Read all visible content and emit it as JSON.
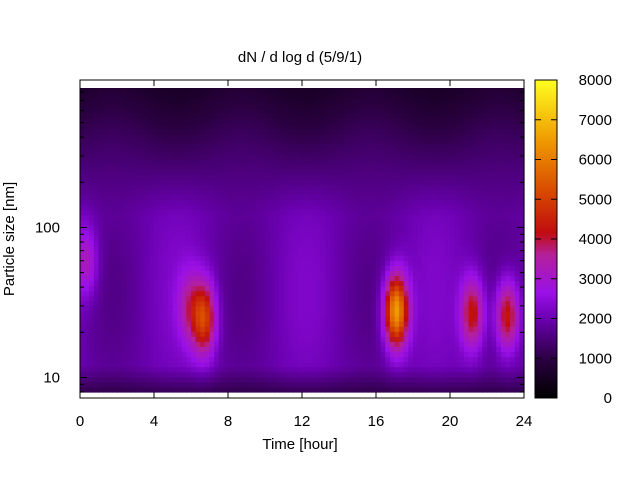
{
  "chart_data": {
    "type": "heatmap",
    "title": "dN / d log d (5/9/1)",
    "xlabel": "Time [hour]",
    "ylabel": "Particle size [nm]",
    "xlim": [
      0,
      24
    ],
    "ylim": [
      8,
      850
    ],
    "yscale": "log",
    "x_ticks": [
      0,
      4,
      8,
      12,
      16,
      20,
      24
    ],
    "y_ticks": [
      10,
      100
    ],
    "colorbar": {
      "ticks": [
        0,
        1000,
        2000,
        3000,
        4000,
        5000,
        6000,
        7000,
        8000
      ],
      "range": [
        0,
        8000
      ],
      "colormap": "gnuplot (black-purple-red-orange-yellow)"
    },
    "background_level": {
      "small_sizes_nm": [
        8,
        12,
        1300
      ],
      "mid_sizes_nm": [
        12,
        120,
        2300
      ],
      "large_sizes_nm": [
        120,
        850,
        800
      ]
    },
    "peaks": [
      {
        "time_h": 6.7,
        "size_nm": 25,
        "value": 5000
      },
      {
        "time_h": 5.9,
        "size_nm": 30,
        "value": 3500
      },
      {
        "time_h": 17.1,
        "size_nm": 28,
        "value": 6500
      },
      {
        "time_h": 21.2,
        "size_nm": 27,
        "value": 4300
      },
      {
        "time_h": 23.1,
        "size_nm": 26,
        "value": 4300
      },
      {
        "time_h": 0.3,
        "size_nm": 60,
        "value": 3200
      }
    ],
    "grid": false,
    "legend": "colorbar right"
  },
  "colors": {
    "axis": "#000000",
    "background": "#ffffff"
  }
}
